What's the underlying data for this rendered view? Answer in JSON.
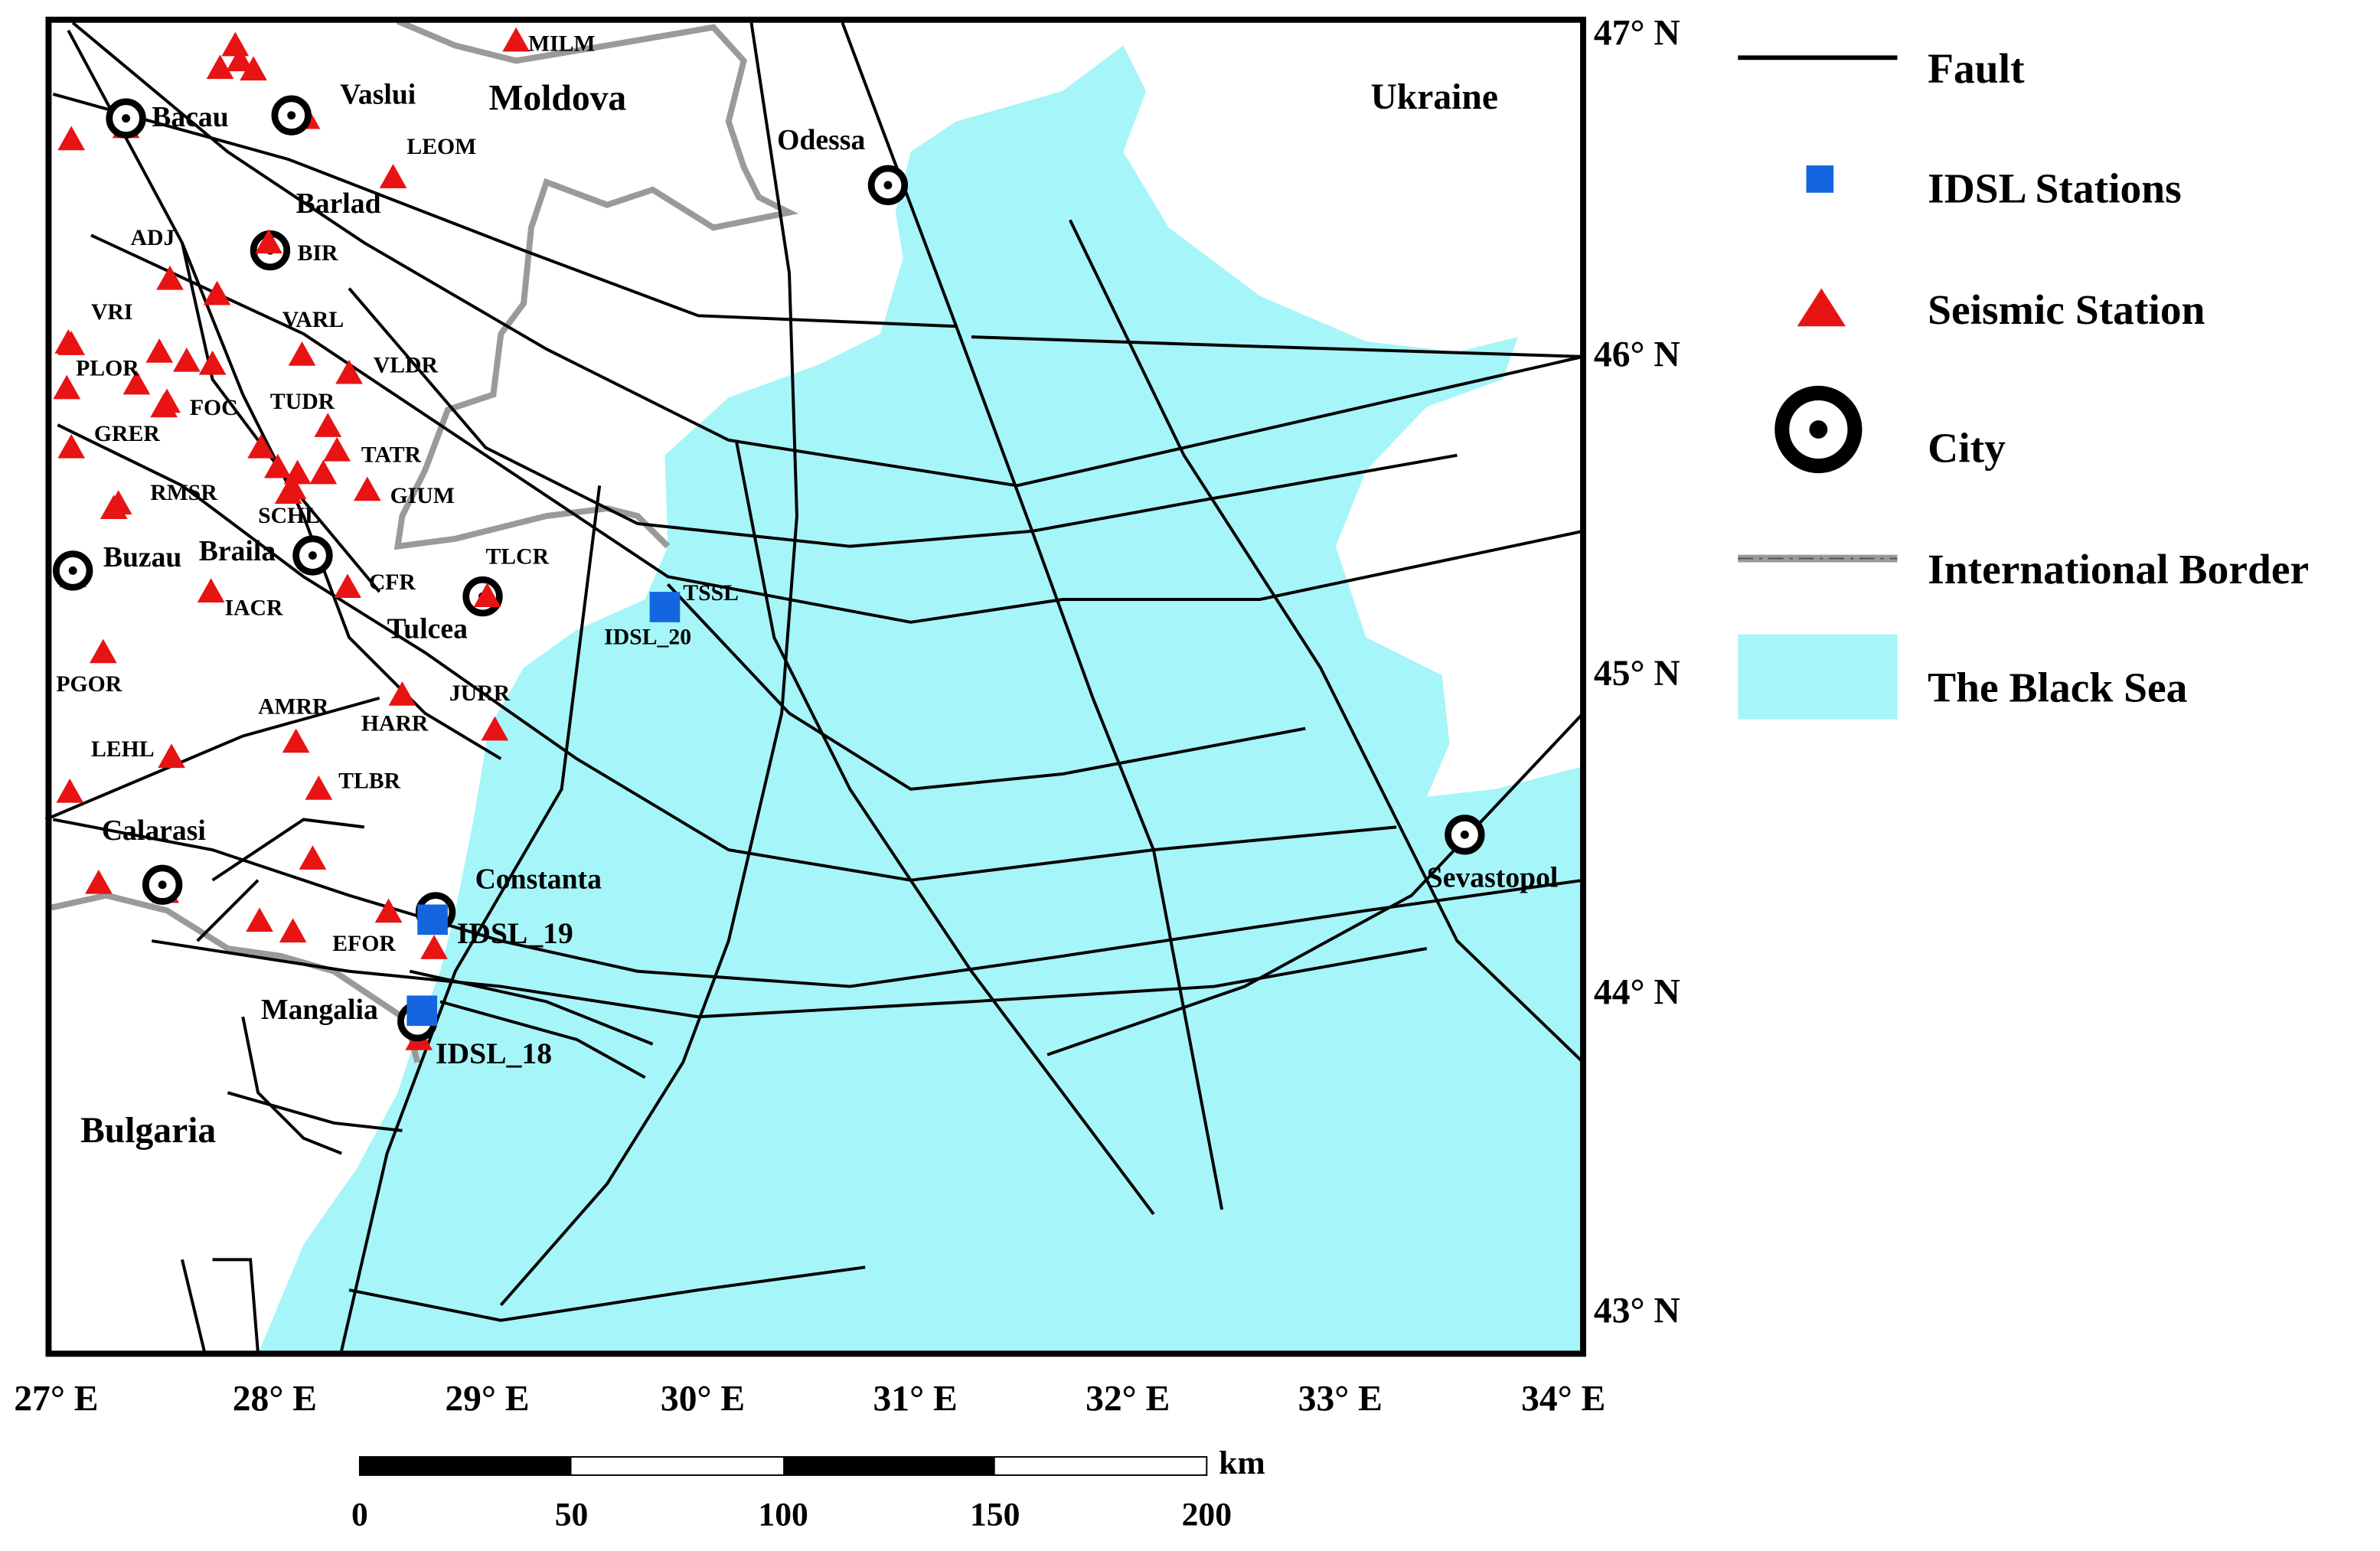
{
  "map": {
    "countries": [
      "Moldova",
      "Ukraine",
      "Bulgaria"
    ],
    "cities": [
      "Bacau",
      "Vaslui",
      "Barlad",
      "Odessa",
      "Buzau",
      "Braila",
      "Tulcea",
      "Calarasi",
      "Constanta",
      "Mangalia",
      "Sevastopol"
    ],
    "stations": [
      "MILM",
      "LEOM",
      "BIR",
      "ADJ",
      "VRI",
      "VARL",
      "VLDR",
      "PLOR",
      "FOC",
      "TUDR",
      "GRER",
      "TATR",
      "RMSR",
      "SCHL",
      "GIUM",
      "TLCR",
      "CFR",
      "IACR",
      "PGOR",
      "AMRR",
      "HARR",
      "JURR",
      "LEHL",
      "TLBR",
      "EFOR"
    ],
    "idsl_labels": [
      "TSSL",
      "IDSL_20",
      "IDSL_19",
      "IDSL_18"
    ],
    "lat_labels": [
      "47° N",
      "46° N",
      "45° N",
      "44° N",
      "43° N"
    ],
    "lon_labels": [
      "27° E",
      "28° E",
      "29° E",
      "30° E",
      "31° E",
      "32° E",
      "33° E",
      "34° E"
    ],
    "scale": {
      "unit": "km",
      "ticks": [
        0,
        50,
        100,
        150,
        200
      ]
    }
  },
  "legend": [
    "Fault",
    "IDSL Stations",
    "Seismic Station",
    "City",
    "International Border",
    "The Black Sea"
  ]
}
